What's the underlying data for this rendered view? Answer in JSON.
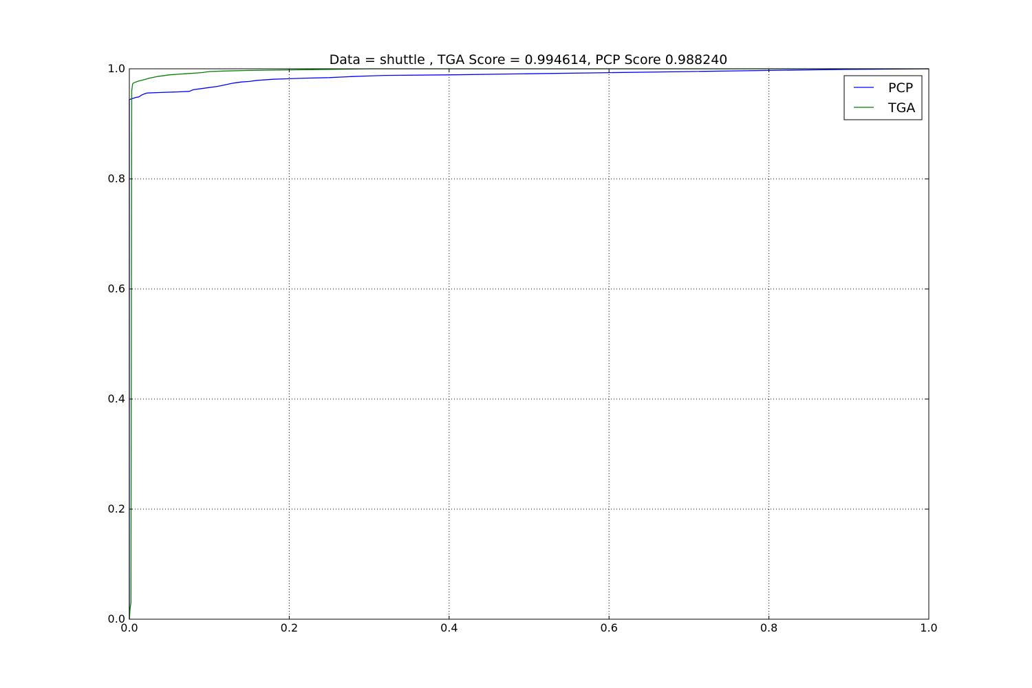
{
  "chart_data": {
    "type": "line",
    "title": "Data = shuttle , TGA Score = 0.994614, PCP Score 0.988240",
    "xlabel": "",
    "ylabel": "",
    "xlim": [
      0.0,
      1.0
    ],
    "ylim": [
      0.0,
      1.0
    ],
    "x_ticks": [
      "0.0",
      "0.2",
      "0.4",
      "0.6",
      "0.8",
      "1.0"
    ],
    "y_ticks": [
      "0.0",
      "0.2",
      "0.4",
      "0.6",
      "0.8",
      "1.0"
    ],
    "grid": true,
    "legend_position": "top-right",
    "series": [
      {
        "name": "PCP",
        "color": "#0000ff",
        "x": [
          0.0,
          0.0,
          0.004,
          0.008,
          0.012,
          0.015,
          0.018,
          0.022,
          0.04,
          0.06,
          0.075,
          0.08,
          0.09,
          0.1,
          0.11,
          0.12,
          0.13,
          0.14,
          0.15,
          0.16,
          0.18,
          0.2,
          0.22,
          0.25,
          0.28,
          0.3,
          0.32,
          0.4,
          0.5,
          0.6,
          0.7,
          0.8,
          0.85,
          0.9,
          1.0
        ],
        "y": [
          0.0,
          0.944,
          0.946,
          0.948,
          0.949,
          0.952,
          0.954,
          0.956,
          0.957,
          0.958,
          0.959,
          0.962,
          0.964,
          0.966,
          0.968,
          0.971,
          0.974,
          0.976,
          0.977,
          0.979,
          0.981,
          0.982,
          0.983,
          0.984,
          0.986,
          0.987,
          0.988,
          0.989,
          0.991,
          0.993,
          0.995,
          0.997,
          0.998,
          0.999,
          1.0
        ]
      },
      {
        "name": "TGA",
        "color": "#008000",
        "x": [
          0.0,
          0.001,
          0.002,
          0.0025,
          0.003,
          0.004,
          0.005,
          0.008,
          0.012,
          0.018,
          0.025,
          0.035,
          0.05,
          0.07,
          0.09,
          0.1,
          0.12,
          0.15,
          0.2,
          0.25,
          0.3,
          0.5,
          1.0
        ],
        "y": [
          0.0,
          0.02,
          0.03,
          0.5,
          0.96,
          0.972,
          0.974,
          0.976,
          0.978,
          0.98,
          0.983,
          0.986,
          0.989,
          0.991,
          0.993,
          0.995,
          0.996,
          0.997,
          0.998,
          0.999,
          1.0,
          1.0,
          1.0
        ]
      }
    ]
  }
}
